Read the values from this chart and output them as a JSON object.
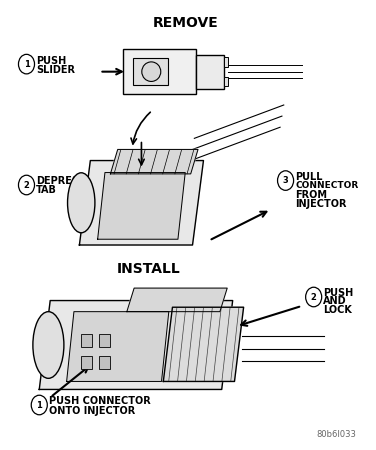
{
  "title": "REMOVE",
  "title2": "INSTALL",
  "bg_color": "#ffffff",
  "line_color": "#000000",
  "fig_label": "80b6I033",
  "face_color_light": "#f0f0f0",
  "face_color_mid": "#e0e0e0",
  "face_color_dark": "#d8d8d8"
}
